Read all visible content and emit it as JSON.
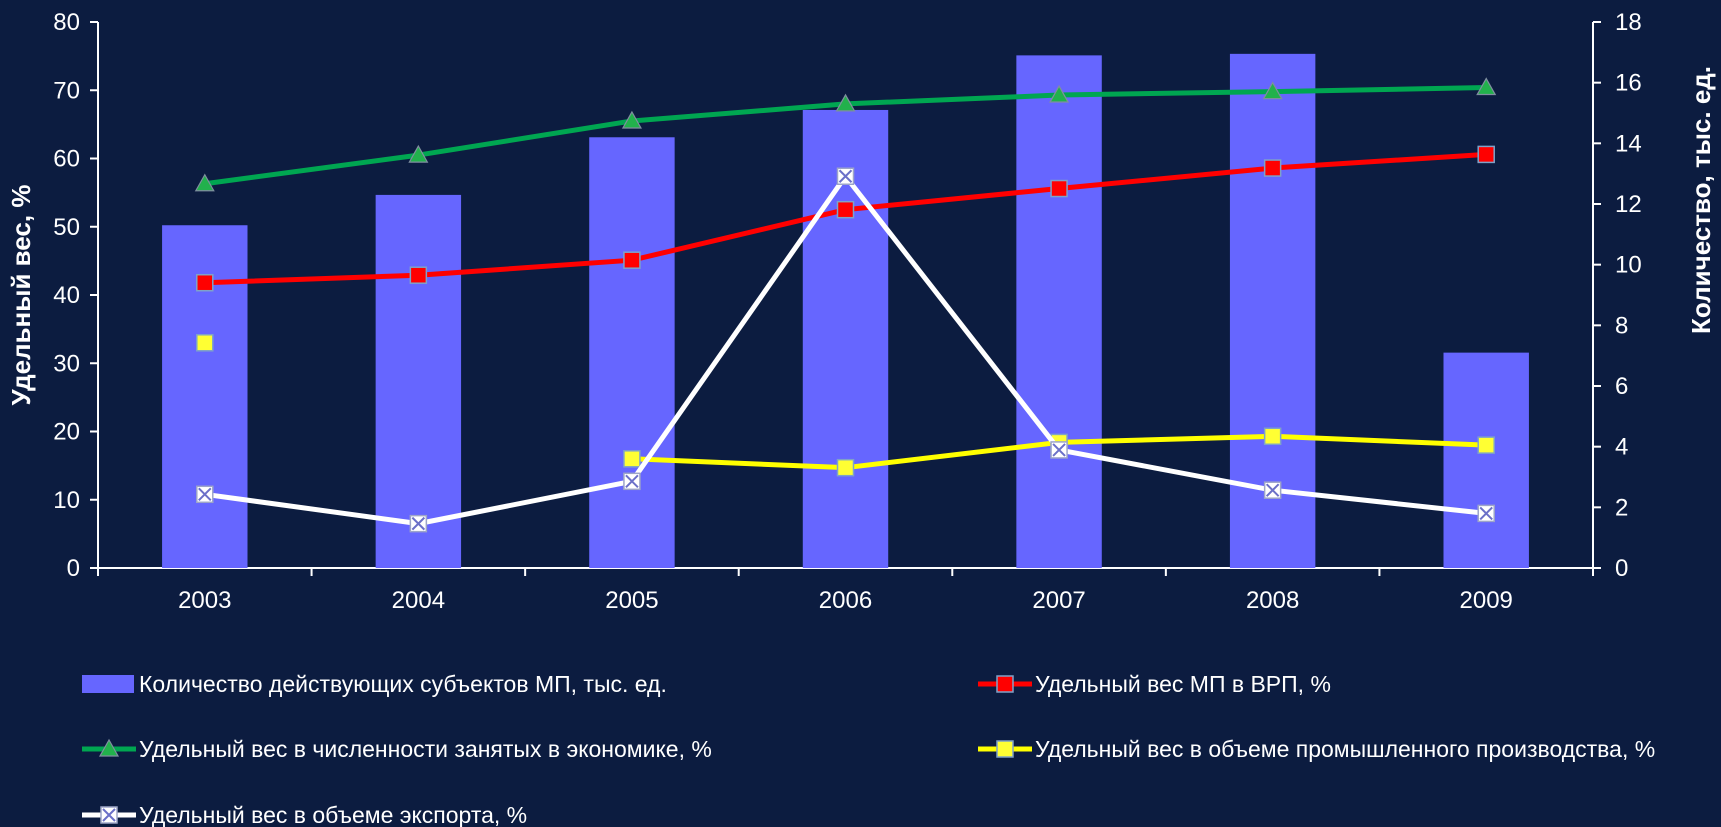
{
  "chart_data": {
    "type": "bar",
    "categories": [
      "2003",
      "2004",
      "2005",
      "2006",
      "2007",
      "2008",
      "2009"
    ],
    "y_left": {
      "label": "Удельный вес, %",
      "min": 0,
      "max": 80,
      "step": 10,
      "ticks": [
        "0",
        "10",
        "20",
        "30",
        "40",
        "50",
        "60",
        "70",
        "80"
      ]
    },
    "y_right": {
      "label": "Количество, тыс. ед.",
      "min": 0,
      "max": 18,
      "step": 2,
      "ticks": [
        "0",
        "2",
        "4",
        "6",
        "8",
        "10",
        "12",
        "14",
        "16",
        "18"
      ]
    },
    "series": [
      {
        "name": "Количество действующих субъектов МП, тыс. ед.",
        "kind": "bar",
        "axis": "right",
        "color": "#6666ff",
        "values": [
          11.3,
          12.3,
          14.2,
          15.1,
          16.9,
          16.95,
          7.1
        ]
      },
      {
        "name": "Удельный вес МП в ВРП, %",
        "kind": "line",
        "axis": "left",
        "marker": "square",
        "color": "#ff0000",
        "marker_color": "#ff0000",
        "values": [
          41.8,
          42.9,
          45.1,
          52.5,
          55.6,
          58.6,
          60.6
        ]
      },
      {
        "name": "Удельный вес в численности занятых в экономике, %",
        "kind": "line",
        "axis": "left",
        "marker": "triangle",
        "color": "#00a651",
        "marker_color": "#22b14c",
        "values": [
          56.3,
          60.5,
          65.5,
          68.0,
          69.3,
          69.8,
          70.4
        ]
      },
      {
        "name": "Удельный вес в объеме промышленного производства, %",
        "kind": "line",
        "axis": "left",
        "marker": "square",
        "color": "#ffff00",
        "marker_color": "#ffff33",
        "values": [
          33.0,
          null,
          16.0,
          14.7,
          18.4,
          19.3,
          18.0
        ]
      },
      {
        "name": "Удельный вес в объеме экспорта, %",
        "kind": "line",
        "axis": "left",
        "marker": "square-x",
        "color": "#ffffff",
        "marker_color": "#ffffff",
        "values": [
          10.8,
          6.5,
          12.7,
          57.4,
          17.3,
          11.4,
          8.0
        ]
      }
    ],
    "legend_position": "bottom",
    "grid": false
  }
}
